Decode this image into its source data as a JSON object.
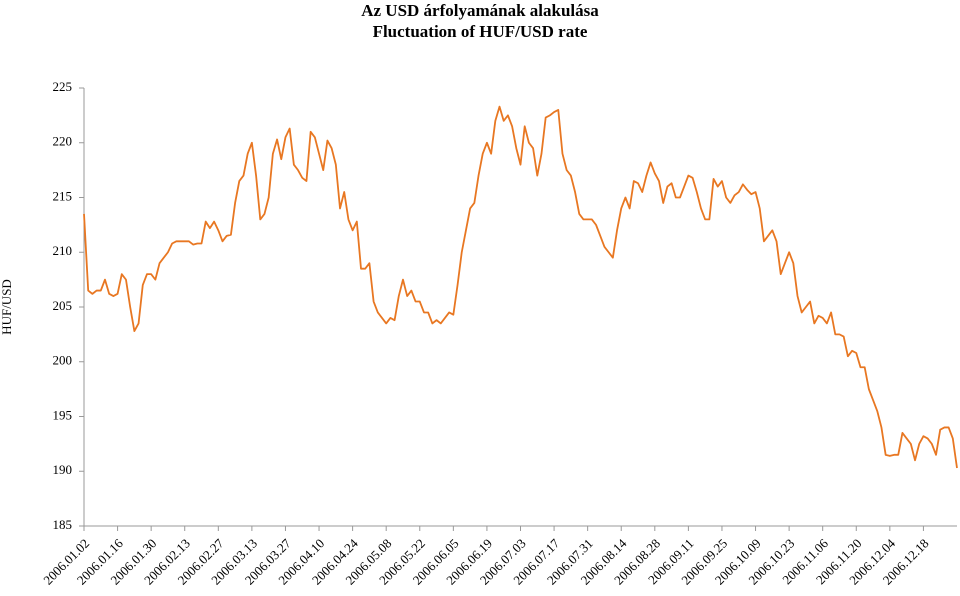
{
  "chart_data": {
    "type": "line",
    "title": "Az USD árfolyamának alakulása",
    "subtitle": "Fluctuation of HUF/USD rate",
    "y_label": "HUF/USD",
    "ylim": [
      185,
      225
    ],
    "yticks": [
      185,
      190,
      195,
      200,
      205,
      210,
      215,
      220,
      225
    ],
    "grid": false,
    "categories": [
      "2006.01.02",
      null,
      null,
      null,
      null,
      null,
      null,
      null,
      "2006.01.16",
      null,
      null,
      null,
      null,
      null,
      null,
      null,
      "2006.01.30",
      null,
      null,
      null,
      null,
      null,
      null,
      null,
      "2006.02.13",
      null,
      null,
      null,
      null,
      null,
      null,
      null,
      "2006.02.27",
      null,
      null,
      null,
      null,
      null,
      null,
      null,
      "2006.03.13",
      null,
      null,
      null,
      null,
      null,
      null,
      null,
      "2006.03.27",
      null,
      null,
      null,
      null,
      null,
      null,
      null,
      "2006.04.10",
      null,
      null,
      null,
      null,
      null,
      null,
      null,
      "2006.04.24",
      null,
      null,
      null,
      null,
      null,
      null,
      null,
      "2006.05.08",
      null,
      null,
      null,
      null,
      null,
      null,
      null,
      "2006.05.22",
      null,
      null,
      null,
      null,
      null,
      null,
      null,
      "2006.06.05",
      null,
      null,
      null,
      null,
      null,
      null,
      null,
      "2006.06.19",
      null,
      null,
      null,
      null,
      null,
      null,
      null,
      "2006.07.03",
      null,
      null,
      null,
      null,
      null,
      null,
      null,
      "2006.07.17",
      null,
      null,
      null,
      null,
      null,
      null,
      null,
      "2006.07.31",
      null,
      null,
      null,
      null,
      null,
      null,
      null,
      "2006.08.14",
      null,
      null,
      null,
      null,
      null,
      null,
      null,
      "2006.08.28",
      null,
      null,
      null,
      null,
      null,
      null,
      null,
      "2006.09.11",
      null,
      null,
      null,
      null,
      null,
      null,
      null,
      "2006.09.25",
      null,
      null,
      null,
      null,
      null,
      null,
      null,
      "2006.10.09",
      null,
      null,
      null,
      null,
      null,
      null,
      null,
      "2006.10.23",
      null,
      null,
      null,
      null,
      null,
      null,
      null,
      "2006.11.06",
      null,
      null,
      null,
      null,
      null,
      null,
      null,
      "2006.11.20",
      null,
      null,
      null,
      null,
      null,
      null,
      null,
      "2006.12.04",
      null,
      null,
      null,
      null,
      null,
      null,
      null,
      "2006.12.18",
      null,
      null,
      null,
      null,
      null,
      null,
      null,
      null
    ],
    "series": [
      {
        "name": "HUF/USD",
        "color": "#e87722",
        "values": [
          213.5,
          206.5,
          206.2,
          206.5,
          206.5,
          207.5,
          206.2,
          206,
          206.2,
          208,
          207.5,
          205,
          202.8,
          203.5,
          207,
          208,
          208,
          207.5,
          209,
          209.5,
          210,
          210.8,
          211,
          211,
          211,
          211,
          210.7,
          210.8,
          210.8,
          212.8,
          212.2,
          212.8,
          212,
          211,
          211.5,
          211.6,
          214.5,
          216.5,
          217,
          219,
          220,
          217,
          213,
          213.5,
          215,
          219,
          220.3,
          218.5,
          220.5,
          221.3,
          218,
          217.5,
          216.8,
          216.5,
          221,
          220.5,
          219,
          217.5,
          220.2,
          219.5,
          218,
          214,
          215.5,
          213,
          212,
          212.8,
          208.5,
          208.5,
          209,
          205.5,
          204.5,
          204,
          203.5,
          204,
          203.8,
          206,
          207.5,
          206,
          206.5,
          205.5,
          205.5,
          204.5,
          204.5,
          203.5,
          203.8,
          203.5,
          204,
          204.5,
          204.3,
          207,
          210,
          212,
          214,
          214.5,
          217,
          219,
          220,
          219,
          222,
          223.3,
          222,
          222.5,
          221.5,
          219.5,
          218,
          221.5,
          220,
          219.5,
          217,
          219,
          222.3,
          222.5,
          222.8,
          223,
          219,
          217.5,
          217,
          215.5,
          213.5,
          213,
          213,
          213,
          212.5,
          211.5,
          210.5,
          210,
          209.5,
          212,
          214,
          215,
          214,
          216.5,
          216.3,
          215.5,
          217,
          218.2,
          217.2,
          216.5,
          214.5,
          216,
          216.3,
          215,
          215,
          216,
          217,
          216.8,
          215.5,
          214,
          213,
          213,
          216.7,
          216,
          216.5,
          215,
          214.5,
          215.2,
          215.5,
          216.2,
          215.7,
          215.3,
          215.5,
          214,
          211,
          211.5,
          212,
          211,
          208,
          209,
          210,
          209,
          206,
          204.5,
          205,
          205.5,
          203.5,
          204.2,
          204,
          203.5,
          204.5,
          202.5,
          202.5,
          202.3,
          200.5,
          201,
          200.8,
          199.5,
          199.5,
          197.5,
          196.5,
          195.5,
          194,
          191.5,
          191.4,
          191.5,
          191.5,
          193.5,
          193,
          192.5,
          191,
          192.5,
          193.2,
          193,
          192.5,
          191.5,
          193.8,
          194,
          194,
          193,
          190.3
        ]
      }
    ]
  }
}
